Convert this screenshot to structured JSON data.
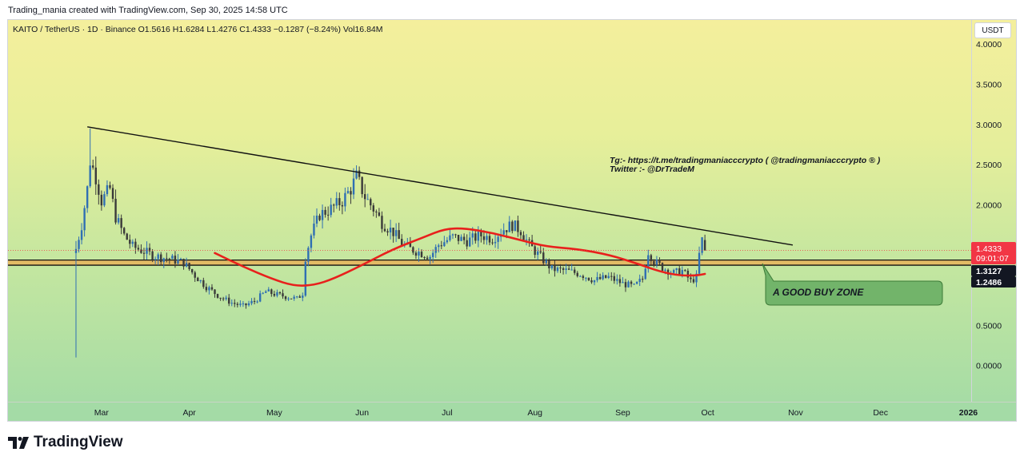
{
  "header": {
    "created_by": "Trading_mania created with TradingView.com, Sep 30, 2025 14:58 UTC"
  },
  "symbol_line": "KAITO / TetherUS · 1D · Binance  O1.5616  H1.6284  L1.4276  C1.4333  −0.1287 (−8.24%)  Vol16.84M",
  "currency_button": "USDT",
  "annotations": {
    "telegram": "Tg:- https://t.me/tradingmaniacccrypto ( @tradingmaniacccrypto ® )",
    "twitter": "Twitter :- @DrTradeM",
    "buy_zone": "A GOOD BUY ZONE"
  },
  "price_badges": {
    "last_price": "1.4333",
    "countdown": "09:01:07",
    "zone_top": "1.3127",
    "zone_bottom": "1.2486"
  },
  "footer": {
    "brand": "TradingView"
  },
  "colors": {
    "up": "#2f6fb3",
    "down": "#3a3a3a",
    "ma": "#e8201c",
    "trendline": "#111111",
    "zone_fill": "#e8b35a",
    "last_price_badge": "#f23645",
    "zone_badge": "#131722",
    "buy_zone_box": "#72b46a"
  },
  "chart_data": {
    "type": "candlestick",
    "title": "KAITO / TetherUS · 1D · Binance",
    "xlabel": "",
    "ylabel": "",
    "y_ticks": [
      0.0,
      0.5,
      1.0,
      1.5,
      2.0,
      2.5,
      3.0,
      3.5,
      4.0
    ],
    "y_tick_labels": [
      "0.0000",
      "0.5000",
      "",
      "1.5000",
      "2.0000",
      "2.5000",
      "3.0000",
      "3.5000",
      "4.0000"
    ],
    "ylim": [
      -0.45,
      4.3
    ],
    "x_ticks": [
      "2025-03-01",
      "2025-04-01",
      "2025-05-01",
      "2025-06-01",
      "2025-07-01",
      "2025-08-01",
      "2025-09-01",
      "2025-10-01",
      "2025-11-01",
      "2025-12-01",
      "2026-01-01"
    ],
    "x_tick_labels": [
      "Mar",
      "Apr",
      "May",
      "Jun",
      "Jul",
      "Aug",
      "Sep",
      "Oct",
      "Nov",
      "Dec",
      "2026"
    ],
    "xlim": [
      "2025-01-27",
      "2026-01-02"
    ],
    "grid": false,
    "close_path": [
      [
        "2025-02-20",
        0.1
      ],
      [
        "2025-02-20",
        1.45
      ],
      [
        "2025-02-22",
        1.75
      ],
      [
        "2025-02-24",
        2.2
      ],
      [
        "2025-02-25",
        2.55
      ],
      [
        "2025-02-27",
        2.35
      ],
      [
        "2025-03-01",
        2.05
      ],
      [
        "2025-03-04",
        2.2
      ],
      [
        "2025-03-06",
        1.85
      ],
      [
        "2025-03-09",
        1.62
      ],
      [
        "2025-03-12",
        1.48
      ],
      [
        "2025-03-16",
        1.42
      ],
      [
        "2025-03-20",
        1.36
      ],
      [
        "2025-03-25",
        1.33
      ],
      [
        "2025-03-30",
        1.28
      ],
      [
        "2025-04-03",
        1.12
      ],
      [
        "2025-04-07",
        0.98
      ],
      [
        "2025-04-12",
        0.85
      ],
      [
        "2025-04-16",
        0.78
      ],
      [
        "2025-04-20",
        0.74
      ],
      [
        "2025-04-24",
        0.8
      ],
      [
        "2025-04-28",
        0.92
      ],
      [
        "2025-05-02",
        0.88
      ],
      [
        "2025-05-05",
        0.86
      ],
      [
        "2025-05-09",
        0.83
      ],
      [
        "2025-05-11",
        0.9
      ],
      [
        "2025-05-12",
        1.35
      ],
      [
        "2025-05-14",
        1.62
      ],
      [
        "2025-05-17",
        1.88
      ],
      [
        "2025-05-21",
        1.95
      ],
      [
        "2025-05-25",
        2.05
      ],
      [
        "2025-05-28",
        2.2
      ],
      [
        "2025-05-30",
        2.35
      ],
      [
        "2025-06-02",
        2.1
      ],
      [
        "2025-06-05",
        1.95
      ],
      [
        "2025-06-08",
        1.78
      ],
      [
        "2025-06-12",
        1.66
      ],
      [
        "2025-06-15",
        1.52
      ],
      [
        "2025-06-18",
        1.45
      ],
      [
        "2025-06-22",
        1.4
      ],
      [
        "2025-06-25",
        1.36
      ],
      [
        "2025-06-28",
        1.5
      ],
      [
        "2025-07-03",
        1.6
      ],
      [
        "2025-07-08",
        1.55
      ],
      [
        "2025-07-13",
        1.62
      ],
      [
        "2025-07-17",
        1.58
      ],
      [
        "2025-07-21",
        1.7
      ],
      [
        "2025-07-24",
        1.75
      ],
      [
        "2025-07-27",
        1.68
      ],
      [
        "2025-07-30",
        1.5
      ],
      [
        "2025-08-03",
        1.35
      ],
      [
        "2025-08-07",
        1.2
      ],
      [
        "2025-08-12",
        1.18
      ],
      [
        "2025-08-17",
        1.14
      ],
      [
        "2025-08-22",
        1.06
      ],
      [
        "2025-08-27",
        1.1
      ],
      [
        "2025-09-01",
        1.02
      ],
      [
        "2025-09-05",
        0.98
      ],
      [
        "2025-09-08",
        1.08
      ],
      [
        "2025-09-10",
        1.42
      ],
      [
        "2025-09-12",
        1.3
      ],
      [
        "2025-09-15",
        1.22
      ],
      [
        "2025-09-19",
        1.15
      ],
      [
        "2025-09-22",
        1.18
      ],
      [
        "2025-09-25",
        1.05
      ],
      [
        "2025-09-27",
        1.1
      ],
      [
        "2025-09-28",
        1.38
      ],
      [
        "2025-09-29",
        1.56
      ],
      [
        "2025-09-30",
        1.43
      ]
    ],
    "series": [
      {
        "name": "",
        "type": "moving_average",
        "color": "#e8201c",
        "points": [
          [
            "2025-04-10",
            1.4
          ],
          [
            "2025-04-20",
            1.23
          ],
          [
            "2025-04-30",
            1.08
          ],
          [
            "2025-05-08",
            0.99
          ],
          [
            "2025-05-15",
            1.0
          ],
          [
            "2025-05-22",
            1.08
          ],
          [
            "2025-06-01",
            1.25
          ],
          [
            "2025-06-12",
            1.45
          ],
          [
            "2025-06-23",
            1.6
          ],
          [
            "2025-06-30",
            1.7
          ],
          [
            "2025-07-07",
            1.71
          ],
          [
            "2025-07-17",
            1.65
          ],
          [
            "2025-07-27",
            1.56
          ],
          [
            "2025-08-05",
            1.48
          ],
          [
            "2025-08-16",
            1.45
          ],
          [
            "2025-08-27",
            1.38
          ],
          [
            "2025-09-06",
            1.27
          ],
          [
            "2025-09-14",
            1.17
          ],
          [
            "2025-09-21",
            1.12
          ],
          [
            "2025-09-27",
            1.12
          ],
          [
            "2025-09-30",
            1.14
          ]
        ]
      },
      {
        "name": "",
        "type": "trendline",
        "color": "#111111",
        "points": [
          [
            "2025-02-24",
            2.97
          ],
          [
            "2025-10-31",
            1.5
          ]
        ]
      }
    ],
    "zone": {
      "top": 1.3127,
      "bottom": 1.2486
    },
    "last_price": 1.4333
  }
}
